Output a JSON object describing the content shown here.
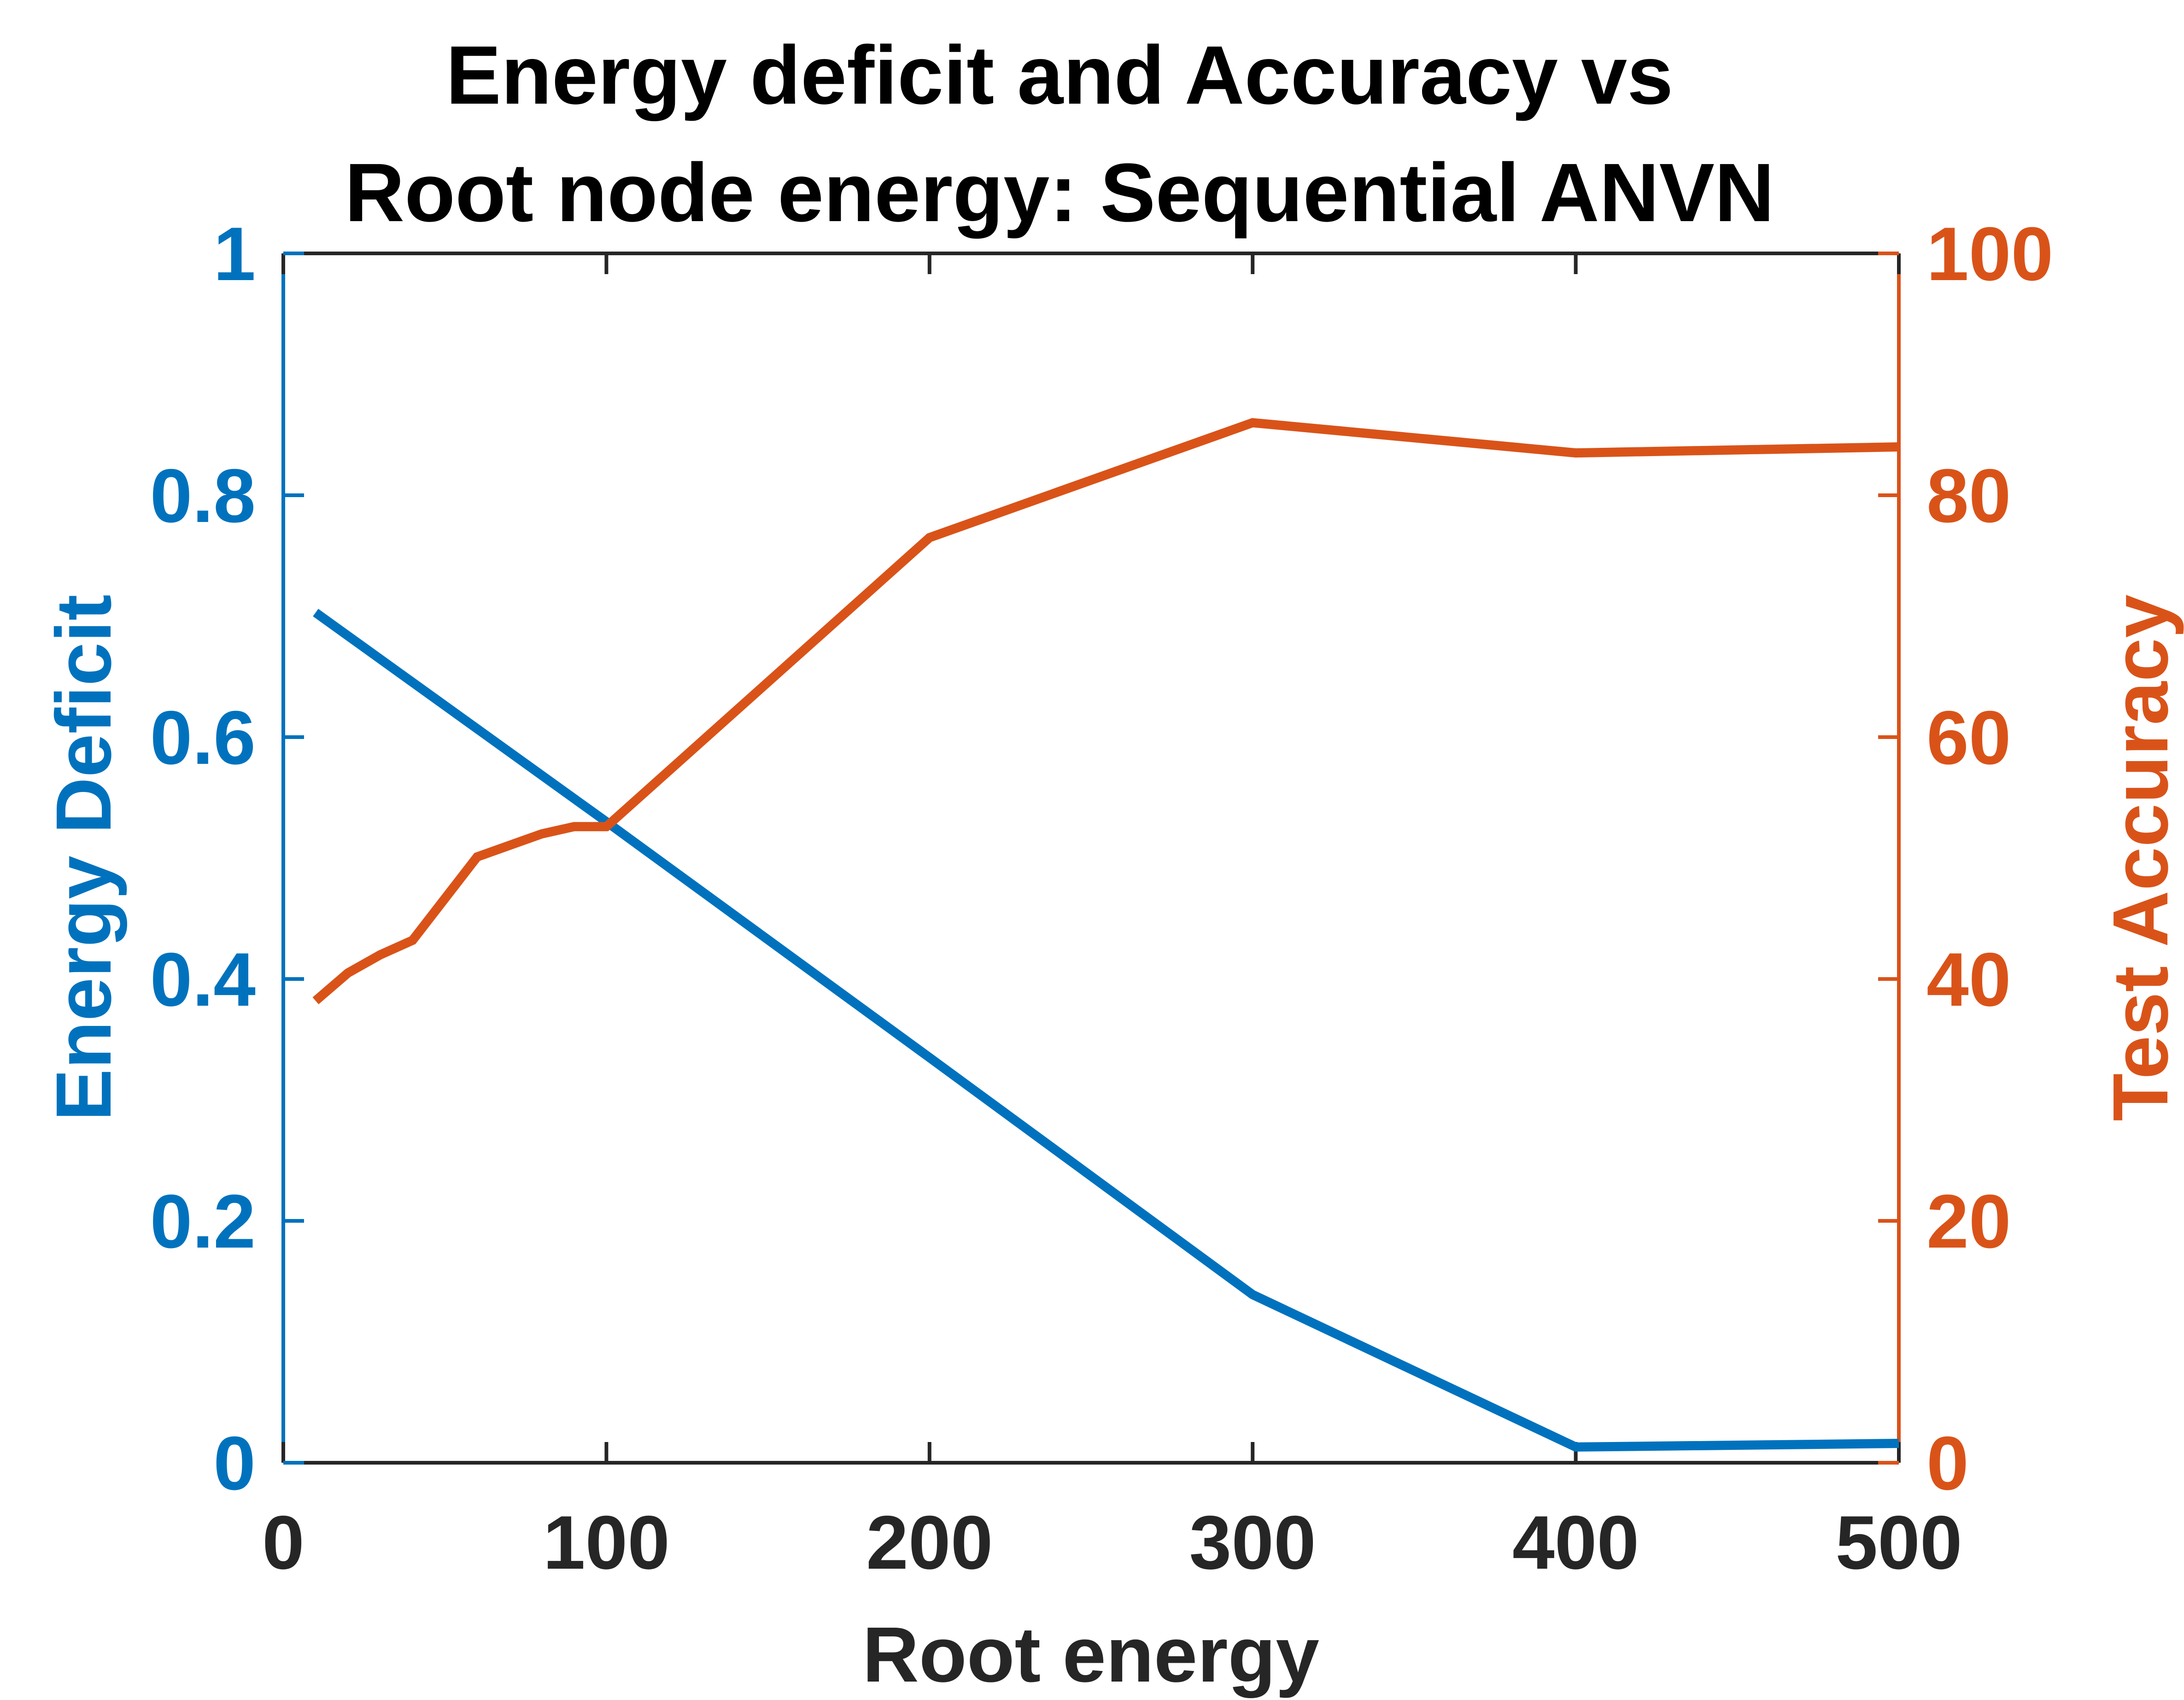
{
  "chart_data": {
    "type": "line",
    "title": [
      "Energy deficit and Accuracy vs",
      "Root node energy: Sequential ANVN"
    ],
    "xlabel": "Root energy",
    "ylabel_left": "Energy Deficit",
    "ylabel_right": "Test Accuracy",
    "xlim": [
      0,
      500
    ],
    "ylim_left": [
      0,
      1
    ],
    "ylim_right": [
      0,
      100
    ],
    "x_ticks": [
      "0",
      "100",
      "200",
      "300",
      "400",
      "500"
    ],
    "y_left_ticks": [
      "0",
      "0.2",
      "0.4",
      "0.6",
      "0.8",
      "1"
    ],
    "y_right_ticks": [
      "0",
      "20",
      "40",
      "60",
      "80",
      "100"
    ],
    "grid": false,
    "colors": {
      "left": "#0072BD",
      "right": "#D95319",
      "axis": "#262626",
      "title": "#000000"
    },
    "series": [
      {
        "axis": "left",
        "x": [
          10,
          100,
          200,
          300,
          400,
          500
        ],
        "y": [
          0.703,
          0.53,
          0.335,
          0.139,
          0.013,
          0.016
        ]
      },
      {
        "axis": "right",
        "x": [
          10,
          20,
          30,
          40,
          60,
          80,
          90,
          100,
          200,
          300,
          400,
          500
        ],
        "y": [
          38.2,
          40.5,
          42.0,
          43.2,
          50.1,
          52.0,
          52.6,
          52.6,
          76.5,
          86.0,
          83.5,
          84.0
        ]
      }
    ]
  }
}
